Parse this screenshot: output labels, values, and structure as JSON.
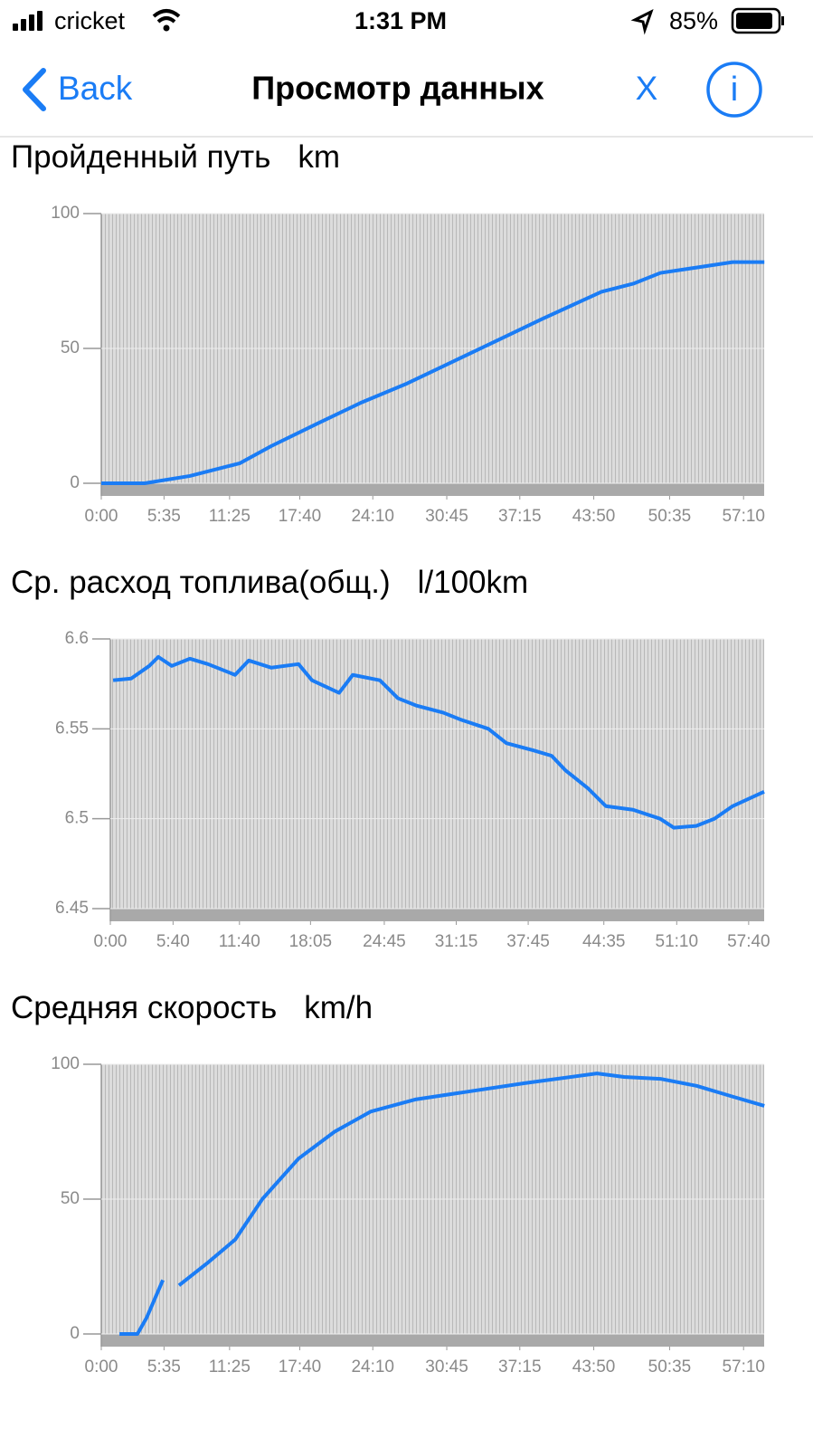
{
  "status_bar": {
    "carrier": "cricket",
    "time": "1:31 PM",
    "battery": "85%"
  },
  "nav_bar": {
    "back": "Back",
    "title": "Просмотр данных",
    "close": "X",
    "info": "i"
  },
  "chart_data": [
    {
      "type": "line",
      "title": "Пройденный путь",
      "unit": "km",
      "color": "#1a7cf5",
      "grid": true,
      "x": [
        0,
        232,
        473,
        739,
        908,
        1150,
        1391,
        1633,
        1874,
        2116,
        2357,
        2671,
        2841,
        2986,
        3179,
        3372,
        3541
      ],
      "values": [
        0,
        0,
        2.7,
        7.4,
        13.8,
        22,
        30,
        37,
        45,
        53,
        61,
        71,
        74,
        78,
        80,
        82,
        82
      ],
      "xlim": [
        0,
        3540
      ],
      "ylim": [
        0,
        100
      ],
      "yticks": [
        0,
        50,
        100
      ],
      "xticks": [
        {
          "value": 0,
          "label": "0:00"
        },
        {
          "value": 335,
          "label": "5:35"
        },
        {
          "value": 685,
          "label": "11:25"
        },
        {
          "value": 1060,
          "label": "17:40"
        },
        {
          "value": 1450,
          "label": "24:10"
        },
        {
          "value": 1845,
          "label": "30:45"
        },
        {
          "value": 2235,
          "label": "37:15"
        },
        {
          "value": 2630,
          "label": "43:50"
        },
        {
          "value": 3035,
          "label": "50:35"
        },
        {
          "value": 3430,
          "label": "57:10"
        }
      ]
    },
    {
      "type": "line",
      "title": "Ср. расход топлива(общ.)",
      "unit": "l/100km",
      "color": "#1a7cf5",
      "grid": true,
      "x": [
        15,
        113,
        211,
        260,
        333,
        431,
        529,
        676,
        750,
        873,
        1020,
        1093,
        1240,
        1314,
        1461,
        1559,
        1657,
        1804,
        1902,
        2049,
        2147,
        2294,
        2392,
        2466,
        2588,
        2686,
        2833,
        2980,
        3054,
        3176,
        3275,
        3373,
        3544
      ],
      "values": [
        6.577,
        6.578,
        6.585,
        6.59,
        6.585,
        6.589,
        6.586,
        6.58,
        6.588,
        6.584,
        6.586,
        6.577,
        6.57,
        6.58,
        6.577,
        6.567,
        6.563,
        6.559,
        6.555,
        6.55,
        6.542,
        6.538,
        6.535,
        6.527,
        6.517,
        6.507,
        6.505,
        6.5,
        6.495,
        6.496,
        6.5,
        6.507,
        6.515
      ],
      "xlim": [
        0,
        3544
      ],
      "ylim": [
        6.45,
        6.6
      ],
      "yticks": [
        6.45,
        6.5,
        6.55,
        6.6
      ],
      "xticks": [
        {
          "value": 0,
          "label": "0:00"
        },
        {
          "value": 340,
          "label": "5:40"
        },
        {
          "value": 700,
          "label": "11:40"
        },
        {
          "value": 1085,
          "label": "18:05"
        },
        {
          "value": 1485,
          "label": "24:45"
        },
        {
          "value": 1875,
          "label": "31:15"
        },
        {
          "value": 2265,
          "label": "37:45"
        },
        {
          "value": 2675,
          "label": "44:35"
        },
        {
          "value": 3070,
          "label": "51:10"
        },
        {
          "value": 3460,
          "label": "57:40"
        }
      ]
    },
    {
      "type": "line",
      "title": "Средняя скорость",
      "unit": "km/h",
      "color": "#1a7cf5",
      "grid": true,
      "x": [
        97,
        193,
        242,
        329,
        370,
        415,
        570,
        715,
        860,
        1053,
        1246,
        1440,
        1681,
        1971,
        2261,
        2647,
        2792,
        2986,
        3179,
        3372,
        3541
      ],
      "values": [
        0,
        0,
        6,
        20,
        null,
        18,
        26.5,
        35,
        50,
        65,
        75,
        82.5,
        87,
        90,
        93,
        96.6,
        95.3,
        94.6,
        92,
        88,
        84.6
      ],
      "xlim": [
        0,
        3540
      ],
      "ylim": [
        0,
        100
      ],
      "yticks": [
        0,
        50,
        100
      ],
      "xticks": [
        {
          "value": 0,
          "label": "0:00"
        },
        {
          "value": 335,
          "label": "5:35"
        },
        {
          "value": 685,
          "label": "11:25"
        },
        {
          "value": 1060,
          "label": "17:40"
        },
        {
          "value": 1450,
          "label": "24:10"
        },
        {
          "value": 1845,
          "label": "30:45"
        },
        {
          "value": 2235,
          "label": "37:15"
        },
        {
          "value": 2630,
          "label": "43:50"
        },
        {
          "value": 3035,
          "label": "50:35"
        },
        {
          "value": 3430,
          "label": "57:10"
        }
      ]
    }
  ]
}
